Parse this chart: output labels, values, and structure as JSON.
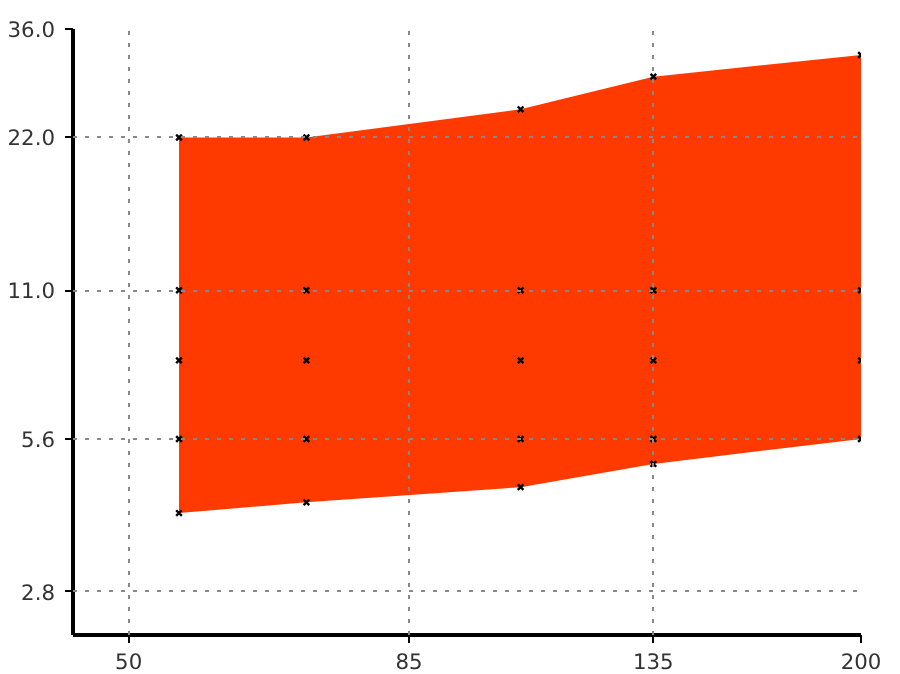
{
  "chart_data": {
    "type": "area",
    "log": "xy",
    "grid": true,
    "xlim": [
      45,
      200
    ],
    "ylim": [
      2.3,
      36
    ],
    "xticks": [
      50,
      85,
      135,
      200
    ],
    "yticks": [
      {
        "value": 2.8,
        "label": "2.8"
      },
      {
        "value": 5.6,
        "label": "5.6"
      },
      {
        "value": 11,
        "label": "11.0"
      },
      {
        "value": 22,
        "label": "22.0"
      },
      {
        "value": 36,
        "label": "36.0"
      }
    ],
    "series": [
      {
        "color": "#ff3a00",
        "x": [
          55,
          70,
          105,
          135,
          200
        ],
        "values": [
          22,
          22,
          25,
          29,
          32
        ]
      },
      {
        "color": "#ffffff",
        "x": [
          55,
          70,
          105,
          135,
          200
        ],
        "values": [
          4.0,
          4.2,
          4.5,
          5.0,
          5.6
        ]
      },
      {
        "type": "scatter",
        "color": "#000000",
        "marker": "cross",
        "x": [
          55,
          55,
          55,
          55,
          55,
          70,
          70,
          70,
          70,
          70,
          105,
          105,
          105,
          105,
          105,
          135,
          135,
          135,
          135,
          135,
          200,
          200,
          200,
          200
        ],
        "values": [
          4.0,
          5.6,
          8,
          11,
          22,
          4.2,
          5.6,
          8,
          11,
          22,
          4.5,
          5.6,
          8,
          11,
          25,
          5.0,
          5.6,
          8,
          11,
          29,
          5.6,
          8,
          11,
          32
        ]
      }
    ]
  }
}
